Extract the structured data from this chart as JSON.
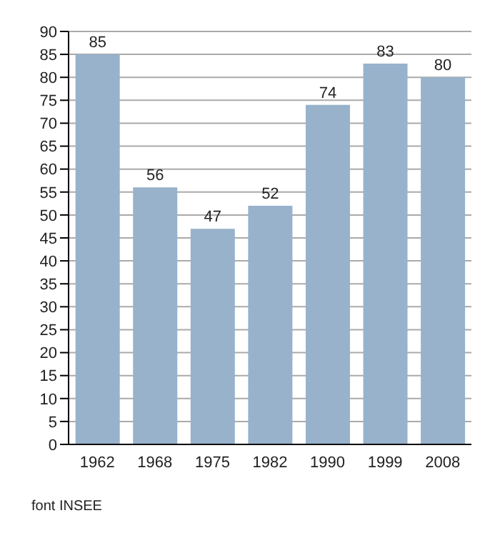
{
  "chart_data": {
    "type": "bar",
    "categories": [
      "1962",
      "1968",
      "1975",
      "1982",
      "1990",
      "1999",
      "2008"
    ],
    "values": [
      85,
      56,
      47,
      52,
      74,
      83,
      80
    ],
    "color": "#98b2cb",
    "data_labels": true,
    "ylim": [
      0,
      90
    ],
    "yticks": [
      0,
      5,
      10,
      15,
      20,
      25,
      30,
      35,
      40,
      45,
      50,
      55,
      60,
      65,
      70,
      75,
      80,
      85,
      90
    ],
    "grid": "y",
    "annotations": [
      "font INSEE"
    ]
  }
}
